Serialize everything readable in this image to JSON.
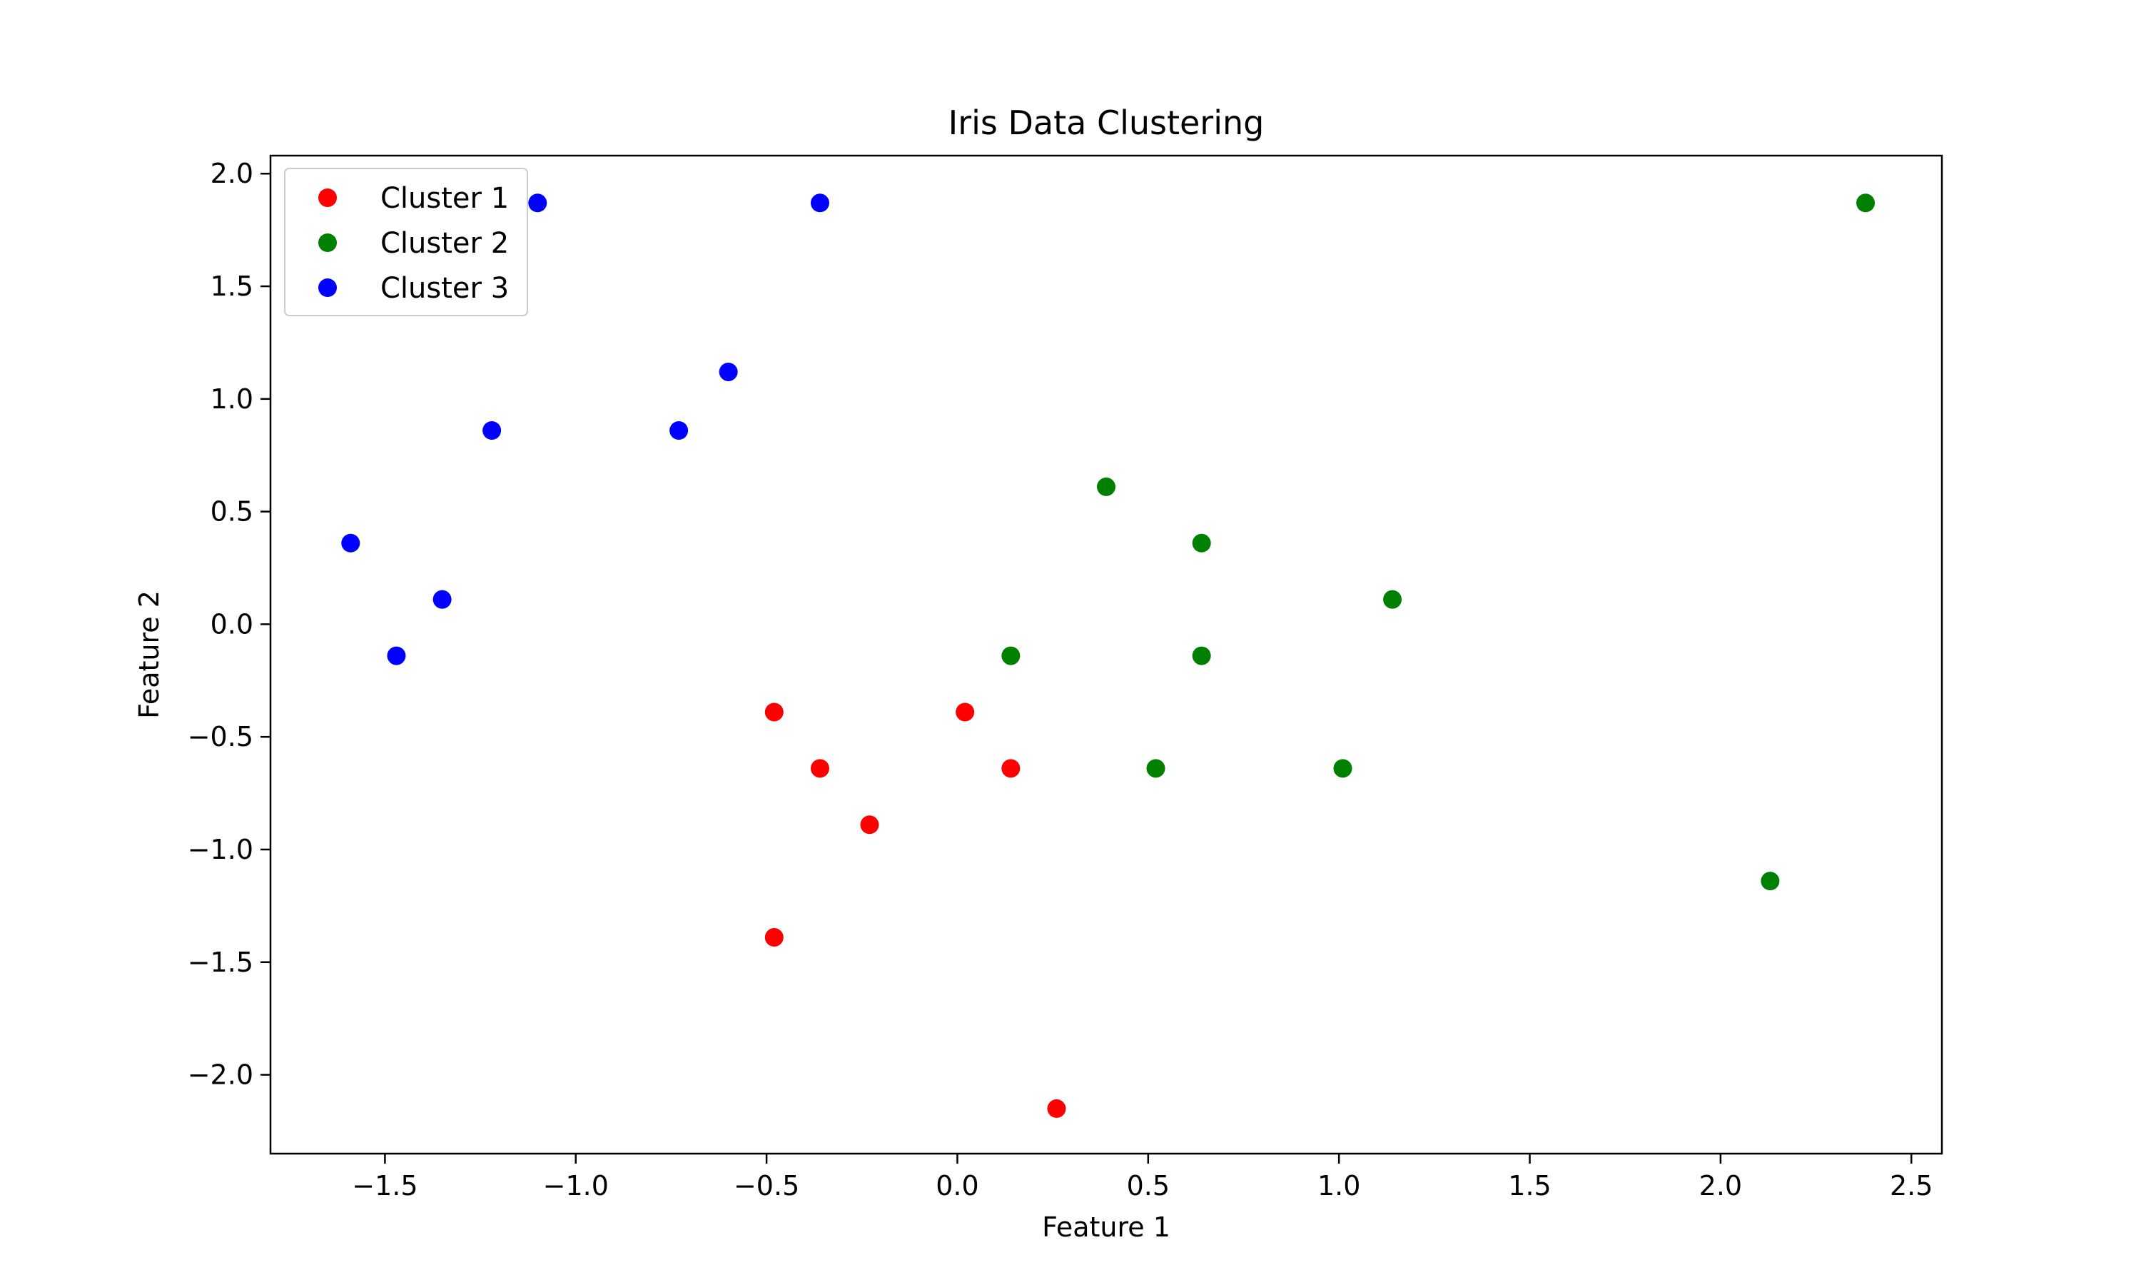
{
  "chart_data": {
    "type": "scatter",
    "title": "Iris Data Clustering",
    "xlabel": "Feature 1",
    "ylabel": "Feature 2",
    "xlim": [
      -1.8,
      2.58
    ],
    "ylim": [
      -2.35,
      2.08
    ],
    "xticks": [
      -1.5,
      -1.0,
      -0.5,
      0.0,
      0.5,
      1.0,
      1.5,
      2.0,
      2.5
    ],
    "xtick_labels": [
      "−1.5",
      "−1.0",
      "−0.5",
      "0.0",
      "0.5",
      "1.0",
      "1.5",
      "2.0",
      "2.5"
    ],
    "yticks": [
      2.0,
      1.5,
      1.0,
      0.5,
      0.0,
      -0.5,
      -1.0,
      -1.5,
      -2.0
    ],
    "ytick_labels": [
      "2.0",
      "1.5",
      "1.0",
      "0.5",
      "0.0",
      "−0.5",
      "−1.0",
      "−1.5",
      "−2.0"
    ],
    "grid": false,
    "legend": "top-left",
    "series": [
      {
        "name": "Cluster 1",
        "color": "#ff0000",
        "points": [
          [
            -0.48,
            -0.39
          ],
          [
            -0.36,
            -0.64
          ],
          [
            -0.23,
            -0.89
          ],
          [
            0.02,
            -0.39
          ],
          [
            0.14,
            -0.64
          ],
          [
            -0.48,
            -1.39
          ],
          [
            0.26,
            -2.15
          ]
        ]
      },
      {
        "name": "Cluster 2",
        "color": "#008000",
        "points": [
          [
            0.39,
            0.61
          ],
          [
            0.64,
            0.36
          ],
          [
            0.14,
            -0.14
          ],
          [
            0.64,
            -0.14
          ],
          [
            1.14,
            0.11
          ],
          [
            0.52,
            -0.64
          ],
          [
            1.01,
            -0.64
          ],
          [
            2.13,
            -1.14
          ],
          [
            2.38,
            1.87
          ]
        ]
      },
      {
        "name": "Cluster 3",
        "color": "#0000ff",
        "points": [
          [
            -1.1,
            1.87
          ],
          [
            -0.36,
            1.87
          ],
          [
            -0.6,
            1.12
          ],
          [
            -1.22,
            0.86
          ],
          [
            -0.73,
            0.86
          ],
          [
            -1.59,
            0.36
          ],
          [
            -1.35,
            0.11
          ],
          [
            -1.47,
            -0.14
          ]
        ]
      }
    ]
  }
}
